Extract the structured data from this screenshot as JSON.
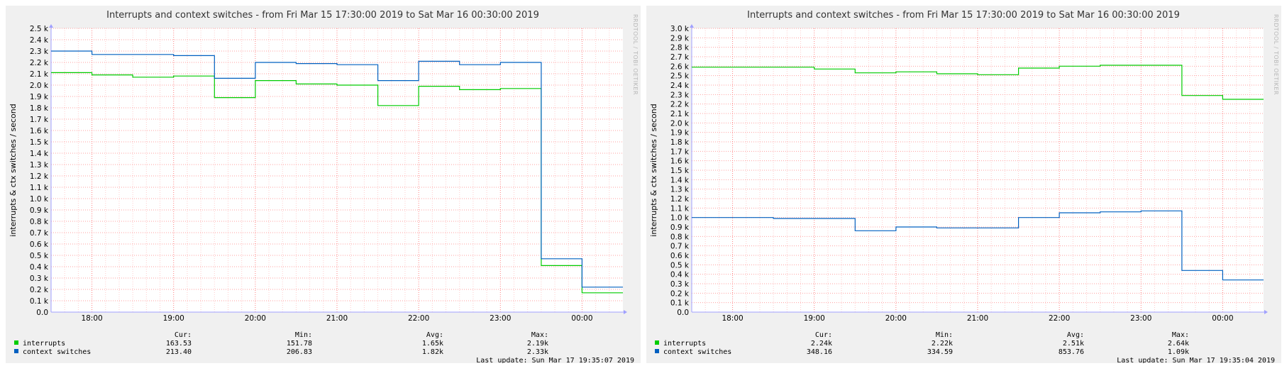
{
  "colors": {
    "interrupts": "#00cc00",
    "context_switches": "#0060c0",
    "grid_minor": "#ffcccc",
    "grid_major": "#ff8080",
    "panel_bg": "#f0f0f0",
    "plot_bg": "#ffffff"
  },
  "chart_data": [
    {
      "type": "line",
      "title": "Interrupts and context switches - from Fri Mar 15 17:30:00 2019 to Sat Mar 16 00:30:00 2019",
      "ylabel": "interrupts & ctx switches / second",
      "watermark": "RRDTOOL / TOBI OETIKER",
      "x_tick_labels": [
        "18:00",
        "19:00",
        "20:00",
        "21:00",
        "22:00",
        "23:00",
        "00:00"
      ],
      "x_tick_hours": [
        0.5,
        1.5,
        2.5,
        3.5,
        4.5,
        5.5,
        6.5
      ],
      "x_range_hours": [
        0,
        7
      ],
      "ylim": [
        0,
        2500
      ],
      "y_step": 100,
      "y_tick_labels": [
        "0.0",
        "0.1 k",
        "0.2 k",
        "0.3 k",
        "0.4 k",
        "0.5 k",
        "0.6 k",
        "0.7 k",
        "0.8 k",
        "0.9 k",
        "1.0 k",
        "1.1 k",
        "1.2 k",
        "1.3 k",
        "1.4 k",
        "1.5 k",
        "1.6 k",
        "1.7 k",
        "1.8 k",
        "1.9 k",
        "2.0 k",
        "2.1 k",
        "2.2 k",
        "2.3 k",
        "2.4 k",
        "2.5 k"
      ],
      "grid": true,
      "series": [
        {
          "name": "interrupts",
          "steps": [
            [
              0,
              2110
            ],
            [
              0.5,
              2090
            ],
            [
              1.0,
              2070
            ],
            [
              1.5,
              2080
            ],
            [
              2.0,
              1890
            ],
            [
              2.5,
              2040
            ],
            [
              3.0,
              2010
            ],
            [
              3.5,
              2000
            ],
            [
              4.0,
              1820
            ],
            [
              4.5,
              1990
            ],
            [
              5.0,
              1960
            ],
            [
              5.5,
              1970
            ],
            [
              6.0,
              410
            ],
            [
              6.5,
              170
            ]
          ],
          "cur": "163.53",
          "min": "151.78",
          "avg": "1.65k",
          "max": "2.19k"
        },
        {
          "name": "context switches",
          "steps": [
            [
              0,
              2300
            ],
            [
              0.5,
              2270
            ],
            [
              1.0,
              2270
            ],
            [
              1.5,
              2260
            ],
            [
              2.0,
              2060
            ],
            [
              2.5,
              2200
            ],
            [
              3.0,
              2190
            ],
            [
              3.5,
              2180
            ],
            [
              4.0,
              2040
            ],
            [
              4.5,
              2210
            ],
            [
              5.0,
              2180
            ],
            [
              5.5,
              2200
            ],
            [
              6.0,
              470
            ],
            [
              6.5,
              220
            ]
          ],
          "cur": "213.40",
          "min": "206.83",
          "avg": "1.82k",
          "max": "2.33k"
        }
      ],
      "legend_headers": {
        "cur": "Cur:",
        "min": "Min:",
        "avg": "Avg:",
        "max": "Max:"
      },
      "last_update": "Last update: Sun Mar 17 19:35:07 2019"
    },
    {
      "type": "line",
      "title": "Interrupts and context switches - from Fri Mar 15 17:30:00 2019 to Sat Mar 16 00:30:00 2019",
      "ylabel": "interrupts & ctx switches / second",
      "watermark": "RRDTOOL / TOBI OETIKER",
      "x_tick_labels": [
        "18:00",
        "19:00",
        "20:00",
        "21:00",
        "22:00",
        "23:00",
        "00:00"
      ],
      "x_tick_hours": [
        0.5,
        1.5,
        2.5,
        3.5,
        4.5,
        5.5,
        6.5
      ],
      "x_range_hours": [
        0,
        7
      ],
      "ylim": [
        0,
        3000
      ],
      "y_step": 100,
      "y_tick_labels": [
        "0.0",
        "0.1 k",
        "0.2 k",
        "0.3 k",
        "0.4 k",
        "0.5 k",
        "0.6 k",
        "0.7 k",
        "0.8 k",
        "0.9 k",
        "1.0 k",
        "1.1 k",
        "1.2 k",
        "1.3 k",
        "1.4 k",
        "1.5 k",
        "1.6 k",
        "1.7 k",
        "1.8 k",
        "1.9 k",
        "2.0 k",
        "2.1 k",
        "2.2 k",
        "2.3 k",
        "2.4 k",
        "2.5 k",
        "2.6 k",
        "2.7 k",
        "2.8 k",
        "2.9 k",
        "3.0 k"
      ],
      "grid": true,
      "series": [
        {
          "name": "interrupts",
          "steps": [
            [
              0,
              2590
            ],
            [
              0.5,
              2590
            ],
            [
              1.0,
              2590
            ],
            [
              1.5,
              2570
            ],
            [
              2.0,
              2530
            ],
            [
              2.5,
              2540
            ],
            [
              3.0,
              2520
            ],
            [
              3.5,
              2510
            ],
            [
              4.0,
              2580
            ],
            [
              4.5,
              2600
            ],
            [
              5.0,
              2610
            ],
            [
              5.5,
              2610
            ],
            [
              6.0,
              2290
            ],
            [
              6.5,
              2250
            ]
          ],
          "cur": "2.24k",
          "min": "2.22k",
          "avg": "2.51k",
          "max": "2.64k"
        },
        {
          "name": "context switches",
          "steps": [
            [
              0,
              1000
            ],
            [
              0.5,
              1000
            ],
            [
              1.0,
              990
            ],
            [
              1.5,
              990
            ],
            [
              2.0,
              860
            ],
            [
              2.5,
              900
            ],
            [
              3.0,
              890
            ],
            [
              3.5,
              890
            ],
            [
              4.0,
              1000
            ],
            [
              4.5,
              1050
            ],
            [
              5.0,
              1060
            ],
            [
              5.5,
              1070
            ],
            [
              6.0,
              440
            ],
            [
              6.5,
              340
            ]
          ],
          "cur": "348.16",
          "min": "334.59",
          "avg": "853.76",
          "max": "1.09k"
        }
      ],
      "legend_headers": {
        "cur": "Cur:",
        "min": "Min:",
        "avg": "Avg:",
        "max": "Max:"
      },
      "last_update": "Last update: Sun Mar 17 19:35:04 2019"
    }
  ]
}
